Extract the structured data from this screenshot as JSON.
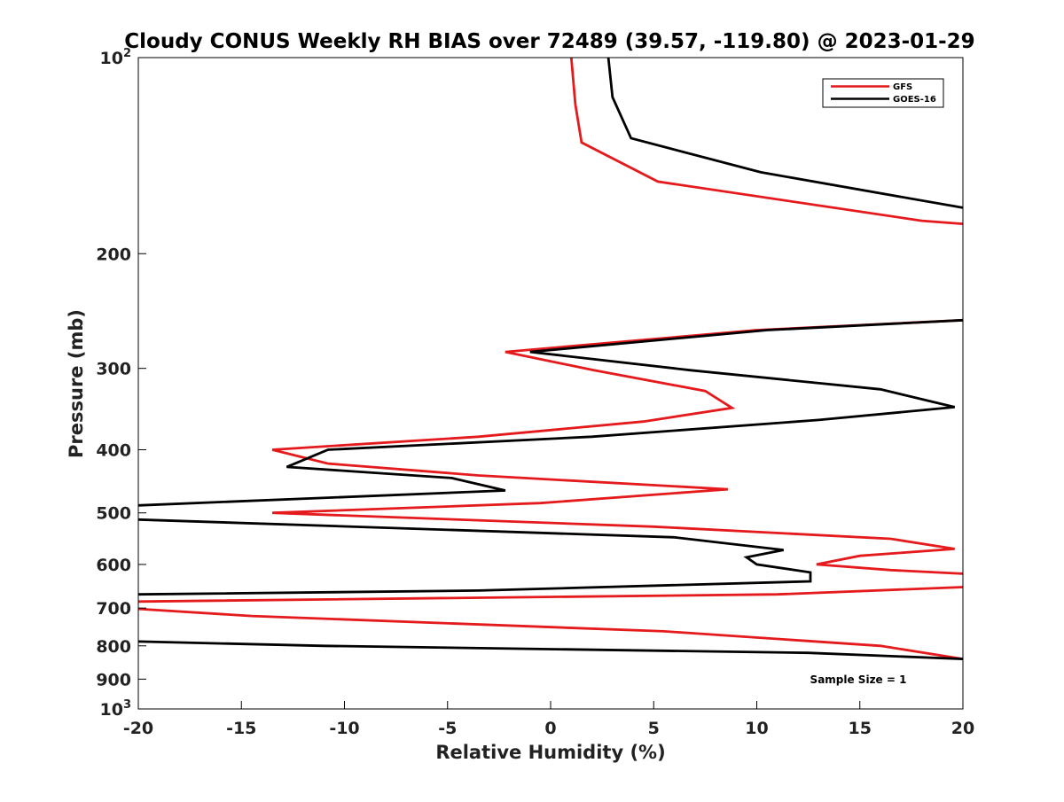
{
  "chart_data": {
    "type": "line",
    "title": "Cloudy CONUS Weekly RH BIAS over 72489 (39.57, -119.80) @ 2023-01-29",
    "xlabel": "Relative Humidity (%)",
    "ylabel": "Pressure (mb)",
    "xlim": [
      -20,
      20
    ],
    "ylim": [
      100,
      1000
    ],
    "y_scale": "log",
    "y_reversed": true,
    "grid": false,
    "legend_position": "top-right",
    "x_ticks": [
      {
        "value": -20,
        "label": "-20"
      },
      {
        "value": -15,
        "label": "-15"
      },
      {
        "value": -10,
        "label": "-10"
      },
      {
        "value": -5,
        "label": "-5"
      },
      {
        "value": 0,
        "label": "0"
      },
      {
        "value": 5,
        "label": "5"
      },
      {
        "value": 10,
        "label": "10"
      },
      {
        "value": 15,
        "label": "15"
      },
      {
        "value": 20,
        "label": "20"
      }
    ],
    "y_ticks": [
      {
        "value": 100,
        "base": "10",
        "exp": "2"
      },
      {
        "value": 200,
        "base": "200",
        "exp": ""
      },
      {
        "value": 300,
        "base": "300",
        "exp": ""
      },
      {
        "value": 400,
        "base": "400",
        "exp": ""
      },
      {
        "value": 500,
        "base": "500",
        "exp": ""
      },
      {
        "value": 600,
        "base": "600",
        "exp": ""
      },
      {
        "value": 700,
        "base": "700",
        "exp": ""
      },
      {
        "value": 800,
        "base": "800",
        "exp": ""
      },
      {
        "value": 900,
        "base": "900",
        "exp": ""
      },
      {
        "value": 1000,
        "base": "10",
        "exp": "3"
      }
    ],
    "series": [
      {
        "name": "GFS",
        "color": "#e41a1c",
        "points": [
          [
            1.0,
            100
          ],
          [
            1.2,
            118
          ],
          [
            1.5,
            135
          ],
          [
            5.2,
            155
          ],
          [
            18.0,
            178
          ],
          [
            20.0,
            180
          ],
          [
            null,
            null
          ],
          [
            20.0,
            253
          ],
          [
            10.0,
            262
          ],
          [
            -2.2,
            283
          ],
          [
            2.1,
            302
          ],
          [
            7.5,
            325
          ],
          [
            8.8,
            345
          ],
          [
            4.5,
            362
          ],
          [
            -3.5,
            382
          ],
          [
            -13.5,
            400
          ],
          [
            -10.8,
            420
          ],
          [
            -3.5,
            438
          ],
          [
            8.6,
            460
          ],
          [
            -0.5,
            483
          ],
          [
            -13.5,
            500
          ],
          [
            5.0,
            525
          ],
          [
            16.5,
            548
          ],
          [
            19.6,
            568
          ],
          [
            15.0,
            582
          ],
          [
            12.9,
            600
          ],
          [
            16.5,
            612
          ],
          [
            20.0,
            620
          ],
          [
            null,
            null
          ],
          [
            20.0,
            650
          ],
          [
            11.0,
            667
          ],
          [
            -20.0,
            684
          ],
          [
            null,
            null
          ],
          [
            -20.0,
            702
          ],
          [
            -14.5,
            720
          ],
          [
            5.5,
            760
          ],
          [
            16.0,
            800
          ],
          [
            20.0,
            838
          ]
        ]
      },
      {
        "name": "GOES-16",
        "color": "#000000",
        "points": [
          [
            2.8,
            100
          ],
          [
            3.0,
            115
          ],
          [
            3.9,
            133
          ],
          [
            10.2,
            150
          ],
          [
            20.0,
            170
          ],
          [
            null,
            null
          ],
          [
            20.0,
            253
          ],
          [
            10.5,
            262
          ],
          [
            -1.0,
            283
          ],
          [
            6.8,
            302
          ],
          [
            16.0,
            323
          ],
          [
            19.6,
            344
          ],
          [
            13.0,
            360
          ],
          [
            2.0,
            382
          ],
          [
            -10.8,
            400
          ],
          [
            -12.8,
            425
          ],
          [
            -4.8,
            442
          ],
          [
            -2.2,
            462
          ],
          [
            -20.0,
            487
          ],
          [
            null,
            null
          ],
          [
            -20.0,
            512
          ],
          [
            6.0,
            545
          ],
          [
            11.3,
            570
          ],
          [
            9.5,
            585
          ],
          [
            10.0,
            600
          ],
          [
            12.6,
            617
          ],
          [
            12.6,
            637
          ],
          [
            -3.5,
            658
          ],
          [
            -20.0,
            667
          ],
          [
            null,
            null
          ],
          [
            -20.0,
            788
          ],
          [
            -11.0,
            800
          ],
          [
            12.5,
            820
          ],
          [
            20.0,
            838
          ]
        ]
      }
    ],
    "annotation": "Sample Size = 1"
  }
}
